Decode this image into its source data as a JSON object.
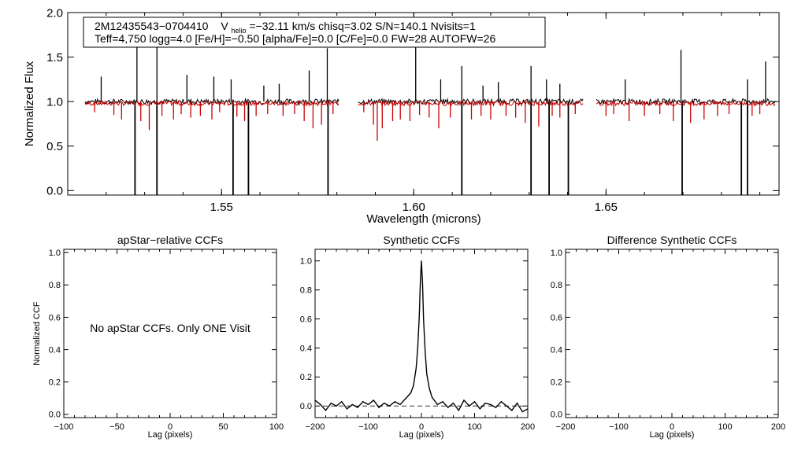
{
  "colors": {
    "observed": "#000000",
    "model": "#cc0000",
    "dashed": "#333333"
  },
  "chart_data": [
    {
      "id": "spectrum",
      "type": "line",
      "xlabel": "Wavelength (microns)",
      "ylabel": "Normalized Flux",
      "xlim": [
        1.51,
        1.695
      ],
      "ylim": [
        -0.05,
        2.0
      ],
      "xticks": [
        1.55,
        1.6,
        1.65
      ],
      "xtick_labels": [
        "1.55",
        "1.60",
        "1.65"
      ],
      "yticks": [
        0.0,
        0.5,
        1.0,
        1.5,
        2.0
      ],
      "ytick_labels": [
        "0.0",
        "0.5",
        "1.0",
        "1.5",
        "2.0"
      ],
      "chips": [
        [
          1.5145,
          1.5805
        ],
        [
          1.5855,
          1.644
        ],
        [
          1.6475,
          1.694
        ]
      ],
      "continuum": 1.0,
      "emission_spikes_observed": [
        {
          "x": 1.5187,
          "y": 1.28
        },
        {
          "x": 1.528,
          "y": 1.62
        },
        {
          "x": 1.5332,
          "y": 1.95
        },
        {
          "x": 1.541,
          "y": 1.3
        },
        {
          "x": 1.548,
          "y": 1.28
        },
        {
          "x": 1.5525,
          "y": 1.25
        },
        {
          "x": 1.561,
          "y": 1.18
        },
        {
          "x": 1.565,
          "y": 1.2
        },
        {
          "x": 1.5728,
          "y": 1.35
        },
        {
          "x": 1.5775,
          "y": 1.6
        },
        {
          "x": 1.6005,
          "y": 1.65
        },
        {
          "x": 1.607,
          "y": 1.25
        },
        {
          "x": 1.6125,
          "y": 1.4
        },
        {
          "x": 1.618,
          "y": 1.18
        },
        {
          "x": 1.622,
          "y": 1.22
        },
        {
          "x": 1.6305,
          "y": 1.4
        },
        {
          "x": 1.6345,
          "y": 1.25
        },
        {
          "x": 1.638,
          "y": 1.2
        },
        {
          "x": 1.655,
          "y": 1.25
        },
        {
          "x": 1.6695,
          "y": 1.58
        },
        {
          "x": 1.6868,
          "y": 1.25
        },
        {
          "x": 1.6915,
          "y": 1.45
        }
      ],
      "absorption_spikes_observed": [
        {
          "x": 1.5275,
          "y": -0.05
        },
        {
          "x": 1.5332,
          "y": -0.05
        },
        {
          "x": 1.553,
          "y": -0.05
        },
        {
          "x": 1.557,
          "y": -0.05
        },
        {
          "x": 1.5777,
          "y": -0.05
        },
        {
          "x": 1.6125,
          "y": -0.05
        },
        {
          "x": 1.6305,
          "y": -0.05
        },
        {
          "x": 1.6352,
          "y": -0.05
        },
        {
          "x": 1.6402,
          "y": -0.05
        },
        {
          "x": 1.6698,
          "y": -0.05
        },
        {
          "x": 1.6852,
          "y": -0.05
        },
        {
          "x": 1.6868,
          "y": -0.05
        }
      ],
      "model_absorption_lines": [
        {
          "x": 1.517,
          "y": 0.88
        },
        {
          "x": 1.522,
          "y": 0.85
        },
        {
          "x": 1.524,
          "y": 0.8
        },
        {
          "x": 1.529,
          "y": 0.78
        },
        {
          "x": 1.5312,
          "y": 0.68
        },
        {
          "x": 1.5345,
          "y": 0.84
        },
        {
          "x": 1.5375,
          "y": 0.8
        },
        {
          "x": 1.5395,
          "y": 0.86
        },
        {
          "x": 1.542,
          "y": 0.82
        },
        {
          "x": 1.5445,
          "y": 0.84
        },
        {
          "x": 1.5475,
          "y": 0.8
        },
        {
          "x": 1.5495,
          "y": 0.88
        },
        {
          "x": 1.554,
          "y": 0.83
        },
        {
          "x": 1.556,
          "y": 0.78
        },
        {
          "x": 1.559,
          "y": 0.84
        },
        {
          "x": 1.562,
          "y": 0.86
        },
        {
          "x": 1.566,
          "y": 0.84
        },
        {
          "x": 1.569,
          "y": 0.86
        },
        {
          "x": 1.5715,
          "y": 0.78
        },
        {
          "x": 1.5738,
          "y": 0.7
        },
        {
          "x": 1.576,
          "y": 0.74
        },
        {
          "x": 1.579,
          "y": 0.86
        },
        {
          "x": 1.587,
          "y": 0.88
        },
        {
          "x": 1.5895,
          "y": 0.74
        },
        {
          "x": 1.5905,
          "y": 0.56
        },
        {
          "x": 1.5918,
          "y": 0.7
        },
        {
          "x": 1.5945,
          "y": 0.78
        },
        {
          "x": 1.5965,
          "y": 0.8
        },
        {
          "x": 1.599,
          "y": 0.78
        },
        {
          "x": 1.6015,
          "y": 0.85
        },
        {
          "x": 1.604,
          "y": 0.82
        },
        {
          "x": 1.6065,
          "y": 0.7
        },
        {
          "x": 1.6095,
          "y": 0.82
        },
        {
          "x": 1.615,
          "y": 0.8
        },
        {
          "x": 1.6175,
          "y": 0.84
        },
        {
          "x": 1.62,
          "y": 0.8
        },
        {
          "x": 1.624,
          "y": 0.84
        },
        {
          "x": 1.6265,
          "y": 0.82
        },
        {
          "x": 1.629,
          "y": 0.76
        },
        {
          "x": 1.6325,
          "y": 0.72
        },
        {
          "x": 1.636,
          "y": 0.84
        },
        {
          "x": 1.638,
          "y": 0.82
        },
        {
          "x": 1.642,
          "y": 0.86
        },
        {
          "x": 1.65,
          "y": 0.84
        },
        {
          "x": 1.652,
          "y": 0.86
        },
        {
          "x": 1.656,
          "y": 0.78
        },
        {
          "x": 1.66,
          "y": 0.84
        },
        {
          "x": 1.664,
          "y": 0.86
        },
        {
          "x": 1.6675,
          "y": 0.78
        },
        {
          "x": 1.672,
          "y": 0.76
        },
        {
          "x": 1.6755,
          "y": 0.8
        },
        {
          "x": 1.679,
          "y": 0.84
        },
        {
          "x": 1.682,
          "y": 0.86
        },
        {
          "x": 1.688,
          "y": 0.84
        },
        {
          "x": 1.69,
          "y": 0.86
        }
      ],
      "info": {
        "line1_id": "2M12435543−0704410",
        "line1_v": "V",
        "line1_sub": "helio",
        "line1_rest": "=−32.11 km/s  chisq=3.02  S/N=140.1  Nvisits=1",
        "line2": "Teff=4,750 logg=4.0 [Fe/H]=−0.50 [alpha/Fe]=0.0 [C/Fe]=0.0 FW=28 AUTOFW=26"
      }
    },
    {
      "id": "apstar-ccf",
      "type": "line",
      "title": "apStar−relative CCFs",
      "xlabel": "Lag (pixels)",
      "ylabel": "Normalized CCF",
      "xlim": [
        -100,
        100
      ],
      "ylim": [
        -0.02,
        1.02
      ],
      "xticks": [
        -100,
        -50,
        0,
        50,
        100
      ],
      "xtick_labels": [
        "−100",
        "−50",
        "0",
        "50",
        "100"
      ],
      "yticks": [
        0.0,
        0.2,
        0.4,
        0.6,
        0.8,
        1.0
      ],
      "ytick_labels": [
        "0.0",
        "0.2",
        "0.4",
        "0.6",
        "0.8",
        "1.0"
      ],
      "note": "No apStar CCFs.  Only ONE Visit"
    },
    {
      "id": "synthetic-ccf",
      "type": "line",
      "title": "Synthetic CCFs",
      "xlabel": "Lag (pixels)",
      "xlim": [
        -200,
        200
      ],
      "ylim": [
        -0.08,
        1.08
      ],
      "xticks": [
        -200,
        -100,
        0,
        100,
        200
      ],
      "xtick_labels": [
        "−200",
        "−100",
        "0",
        "100",
        "200"
      ],
      "yticks": [
        0.0,
        0.2,
        0.4,
        0.6,
        0.8,
        1.0
      ],
      "ytick_labels": [
        "0.0",
        "0.2",
        "0.4",
        "0.6",
        "0.8",
        "1.0"
      ],
      "baseline": 0.0,
      "series": [
        {
          "name": "CCF",
          "x": [
            -200,
            -190,
            -180,
            -170,
            -160,
            -150,
            -140,
            -130,
            -120,
            -110,
            -100,
            -90,
            -80,
            -70,
            -60,
            -50,
            -40,
            -30,
            -20,
            -15,
            -10,
            -7,
            -4,
            -2,
            0,
            2,
            4,
            7,
            10,
            15,
            20,
            30,
            40,
            50,
            60,
            70,
            80,
            90,
            100,
            110,
            120,
            130,
            140,
            150,
            160,
            170,
            180,
            190,
            200
          ],
          "y": [
            0.04,
            0.01,
            -0.03,
            0.02,
            0.0,
            0.03,
            -0.02,
            0.01,
            -0.01,
            0.03,
            0.01,
            0.04,
            -0.01,
            0.02,
            0.0,
            0.03,
            0.01,
            0.05,
            0.09,
            0.14,
            0.26,
            0.4,
            0.62,
            0.85,
            1.0,
            0.85,
            0.6,
            0.38,
            0.22,
            0.12,
            0.06,
            0.01,
            0.03,
            -0.01,
            0.02,
            -0.03,
            0.04,
            0.0,
            0.03,
            -0.02,
            0.02,
            0.01,
            -0.01,
            0.03,
            0.0,
            -0.03,
            0.02,
            -0.04,
            -0.02
          ]
        }
      ]
    },
    {
      "id": "difference-ccf",
      "type": "line",
      "title": "Difference Synthetic CCFs",
      "xlabel": "Lag (pixels)",
      "xlim": [
        -200,
        200
      ],
      "ylim": [
        -0.02,
        1.02
      ],
      "xticks": [
        -200,
        -100,
        0,
        100,
        200
      ],
      "xtick_labels": [
        "−200",
        "−100",
        "0",
        "100",
        "200"
      ],
      "yticks": [
        0.0,
        0.2,
        0.4,
        0.6,
        0.8,
        1.0
      ],
      "ytick_labels": [
        "0.0",
        "0.2",
        "0.4",
        "0.6",
        "0.8",
        "1.0"
      ]
    }
  ]
}
